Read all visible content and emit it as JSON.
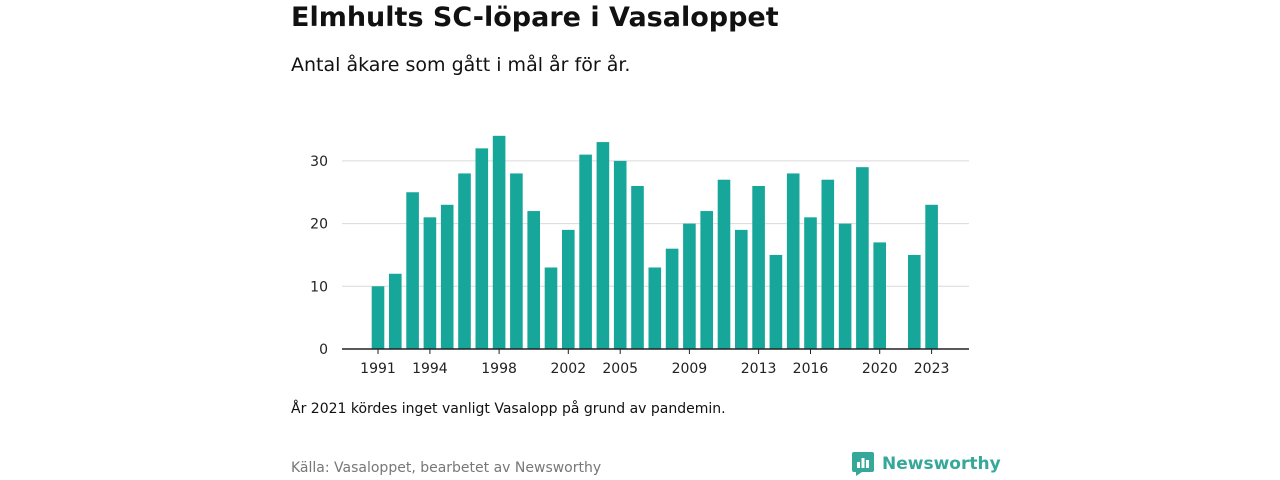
{
  "title": "Elmhults SC-löpare i Vasaloppet",
  "subtitle": "Antal åkare som gått i mål år för år.",
  "note": "År 2021 kördes inget vanligt Vasalopp på grund av pandemin.",
  "source": "Källa: Vasaloppet, bearbetet av Newsworthy",
  "brand": "Newsworthy",
  "colors": {
    "bar": "#16a69a",
    "grid": "#d9d9d9",
    "axis": "#222222",
    "brand": "#35a89a"
  },
  "chart_data": {
    "type": "bar",
    "title": "Elmhults SC-löpare i Vasaloppet",
    "subtitle": "Antal åkare som gått i mål år för år.",
    "xlabel": "",
    "ylabel": "",
    "ylim": [
      0,
      35
    ],
    "yticks": [
      0,
      10,
      20,
      30
    ],
    "grid": true,
    "x_tick_labels": [
      1991,
      1994,
      1998,
      2002,
      2005,
      2009,
      2013,
      2016,
      2020,
      2023
    ],
    "x": [
      1991,
      1992,
      1993,
      1994,
      1995,
      1996,
      1997,
      1998,
      1999,
      2000,
      2001,
      2002,
      2003,
      2004,
      2005,
      2006,
      2007,
      2008,
      2009,
      2010,
      2011,
      2012,
      2013,
      2014,
      2015,
      2016,
      2017,
      2018,
      2019,
      2020,
      2021,
      2022,
      2023
    ],
    "values": [
      10,
      12,
      25,
      21,
      23,
      28,
      32,
      34,
      28,
      22,
      13,
      19,
      31,
      33,
      30,
      26,
      13,
      16,
      20,
      22,
      27,
      19,
      26,
      15,
      28,
      21,
      27,
      20,
      29,
      17,
      null,
      15,
      23
    ]
  }
}
